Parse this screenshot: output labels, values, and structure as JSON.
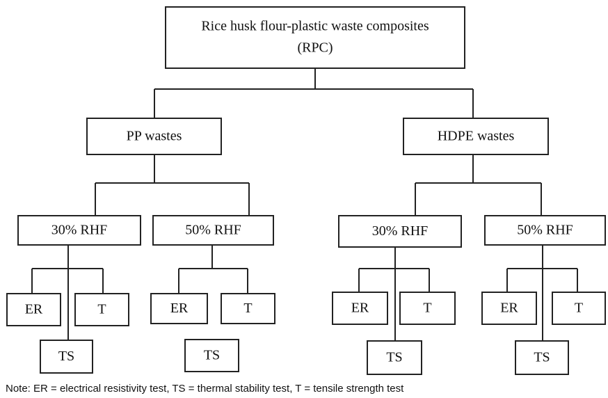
{
  "root": {
    "lines": [
      "Rice husk flour-plastic waste composites",
      "(RPC)"
    ]
  },
  "groups": [
    {
      "label": "PP wastes",
      "subgroups": [
        {
          "label": "30% RHF",
          "tests": [
            "ER",
            "T",
            "TS"
          ]
        },
        {
          "label": "50% RHF",
          "tests": [
            "ER",
            "T",
            "TS"
          ]
        }
      ]
    },
    {
      "label": "HDPE wastes",
      "subgroups": [
        {
          "label": "30% RHF",
          "tests": [
            "ER",
            "T",
            "TS"
          ]
        },
        {
          "label": "50% RHF",
          "tests": [
            "ER",
            "T",
            "TS"
          ]
        }
      ]
    }
  ],
  "note": "Note: ER = electrical resistivity test, TS = thermal stability test, T = tensile strength test"
}
